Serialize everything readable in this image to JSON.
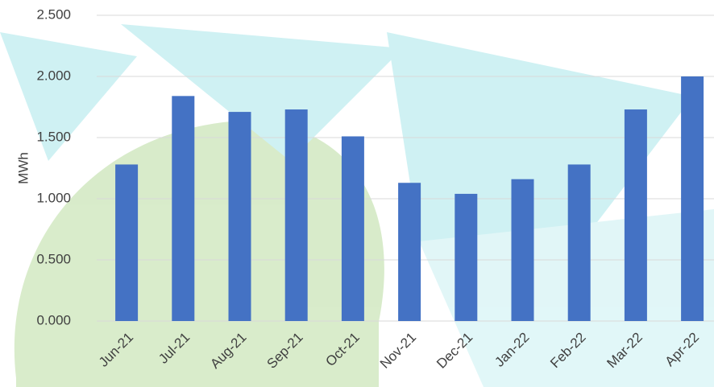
{
  "chart_data": {
    "type": "bar",
    "y_label": "MWh",
    "categories": [
      "Jun-21",
      "Jul-21",
      "Aug-21",
      "Sep-21",
      "Oct-21",
      "Nov-21",
      "Dec-21",
      "Jan-22",
      "Feb-22",
      "Mar-22",
      "Apr-22"
    ],
    "values": [
      1.28,
      1.84,
      1.71,
      1.73,
      1.51,
      1.13,
      1.04,
      1.16,
      1.28,
      1.73,
      2.0
    ],
    "color": "#4472c4",
    "ylim": [
      0,
      2.5
    ],
    "yticks": [
      {
        "value": 0,
        "label": "0.000"
      },
      {
        "value": 0.5,
        "label": "0.500"
      },
      {
        "value": 1,
        "label": "1.000"
      },
      {
        "value": 1.5,
        "label": "1.500"
      },
      {
        "value": 2,
        "label": "2.000"
      },
      {
        "value": 2.5,
        "label": "2.500"
      }
    ],
    "grid": true
  }
}
